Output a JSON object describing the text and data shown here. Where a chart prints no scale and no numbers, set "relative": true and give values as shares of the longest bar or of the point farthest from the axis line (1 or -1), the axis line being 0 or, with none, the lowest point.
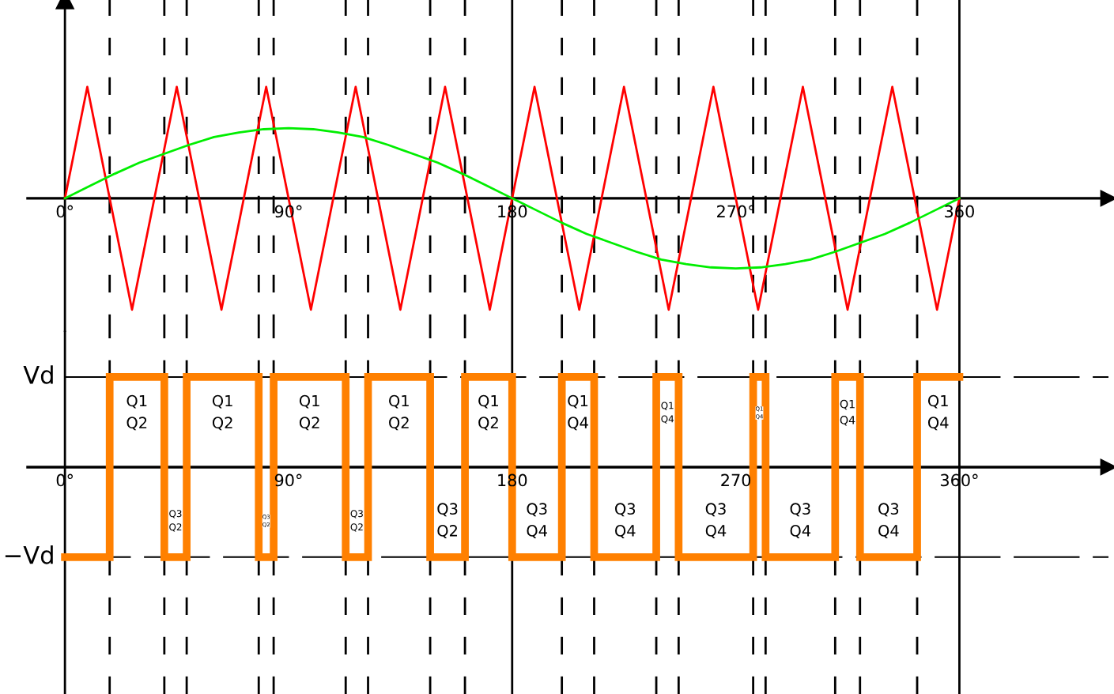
{
  "chart_data": [
    {
      "type": "line",
      "relative": true,
      "series": [
        {
          "color": "#ff0000",
          "x": [
            0,
            9,
            27,
            45,
            63,
            81,
            99,
            117,
            135,
            153,
            171,
            189,
            207,
            225,
            243,
            261,
            279,
            297,
            315,
            333,
            351,
            360
          ],
          "values": [
            0,
            1,
            -1,
            1,
            -1,
            1,
            -1,
            1,
            -1,
            1,
            -1,
            1,
            -1,
            1,
            -1,
            1,
            -1,
            1,
            -1,
            1,
            -1,
            0
          ]
        },
        {
          "color": "#00ee00",
          "x": [
            0,
            10,
            20,
            30,
            40,
            50,
            60,
            70,
            80,
            90,
            100,
            110,
            120,
            130,
            140,
            150,
            160,
            170,
            180,
            190,
            200,
            210,
            220,
            230,
            240,
            250,
            260,
            270,
            280,
            290,
            300,
            310,
            320,
            330,
            340,
            350,
            360
          ],
          "values": [
            0,
            0.11,
            0.22,
            0.32,
            0.4,
            0.48,
            0.55,
            0.59,
            0.62,
            0.63,
            0.62,
            0.59,
            0.55,
            0.48,
            0.4,
            0.32,
            0.22,
            0.11,
            0,
            -0.11,
            -0.22,
            -0.32,
            -0.4,
            -0.48,
            -0.55,
            -0.59,
            -0.62,
            -0.63,
            -0.62,
            -0.59,
            -0.55,
            -0.48,
            -0.4,
            -0.32,
            -0.22,
            -0.11,
            0
          ]
        }
      ],
      "xlim": [
        -15,
        420
      ],
      "xticks": [
        {
          "value": 0,
          "label": "0°"
        },
        {
          "value": 90,
          "label": "90°"
        },
        {
          "value": 180,
          "label": "180"
        },
        {
          "value": 270,
          "label": "270°"
        },
        {
          "value": 360,
          "label": "360"
        }
      ],
      "ref_lines": [
        {
          "axis": "x",
          "value": 18,
          "line_style": "dashed",
          "color": "#000000"
        },
        {
          "axis": "x",
          "value": 40,
          "line_style": "dashed",
          "color": "#000000"
        },
        {
          "axis": "x",
          "value": 49,
          "line_style": "dashed",
          "color": "#000000"
        },
        {
          "axis": "x",
          "value": 78,
          "line_style": "dashed",
          "color": "#000000"
        },
        {
          "axis": "x",
          "value": 84,
          "line_style": "dashed",
          "color": "#000000"
        },
        {
          "axis": "x",
          "value": 113,
          "line_style": "dashed",
          "color": "#000000"
        },
        {
          "axis": "x",
          "value": 122,
          "line_style": "dashed",
          "color": "#000000"
        },
        {
          "axis": "x",
          "value": 147,
          "line_style": "dashed",
          "color": "#000000"
        },
        {
          "axis": "x",
          "value": 161,
          "line_style": "dashed",
          "color": "#000000"
        },
        {
          "axis": "x",
          "value": 180,
          "line_style": "solid",
          "color": "#000000"
        },
        {
          "axis": "x",
          "value": 200,
          "line_style": "dashed",
          "color": "#000000"
        },
        {
          "axis": "x",
          "value": 213,
          "line_style": "dashed",
          "color": "#000000"
        },
        {
          "axis": "x",
          "value": 238,
          "line_style": "dashed",
          "color": "#000000"
        },
        {
          "axis": "x",
          "value": 247,
          "line_style": "dashed",
          "color": "#000000"
        },
        {
          "axis": "x",
          "value": 277,
          "line_style": "dashed",
          "color": "#000000"
        },
        {
          "axis": "x",
          "value": 282,
          "line_style": "dashed",
          "color": "#000000"
        },
        {
          "axis": "x",
          "value": 310,
          "line_style": "dashed",
          "color": "#000000"
        },
        {
          "axis": "x",
          "value": 320,
          "line_style": "dashed",
          "color": "#000000"
        },
        {
          "axis": "x",
          "value": 343,
          "line_style": "dashed",
          "color": "#000000"
        },
        {
          "axis": "x",
          "value": 360,
          "line_style": "solid",
          "color": "#000000"
        }
      ]
    },
    {
      "type": "step",
      "relative": true,
      "series": [
        {
          "color": "#ff8000",
          "x": [
            0,
            18,
            40,
            49,
            78,
            84,
            113,
            122,
            147,
            161,
            180,
            200,
            213,
            238,
            247,
            277,
            282,
            310,
            320,
            343,
            360
          ],
          "values": [
            -1,
            1,
            -1,
            1,
            -1,
            1,
            -1,
            1,
            -1,
            1,
            -1,
            1,
            -1,
            1,
            -1,
            1,
            -1,
            1,
            -1,
            1,
            1
          ]
        }
      ],
      "xlim": [
        -15,
        420
      ],
      "xticks": [
        {
          "value": 0,
          "label": "0°"
        },
        {
          "value": 90,
          "label": "90°"
        },
        {
          "value": 180,
          "label": "180"
        },
        {
          "value": 270,
          "label": "270"
        },
        {
          "value": 360,
          "label": "360°"
        }
      ],
      "annotations": [
        "Q1\nQ2",
        "Q3\nQ2",
        "Q1\nQ2",
        "Q3\nQ2",
        "Q1\nQ2",
        "Q3\nQ2",
        "Q1\nQ2",
        "Q3\nQ2",
        "Q1\nQ2",
        "Q3\nQ4",
        "Q1\nQ4",
        "Q3\nQ4",
        "Q1\nQ4",
        "Q3\nQ4",
        "Q1\nQ4",
        "Q3\nQ4",
        "Q1\nQ4",
        "Q3\nQ4",
        "Q1\nQ4"
      ],
      "ref_lines": [
        {
          "axis": "y",
          "value": 1,
          "label": "Vd",
          "line_style": "dashed",
          "color": "#000000"
        },
        {
          "axis": "y",
          "value": -1,
          "label": "−Vd",
          "line_style": "dashed",
          "color": "#000000"
        },
        {
          "axis": "x",
          "value": 18,
          "line_style": "dashed",
          "color": "#000000"
        },
        {
          "axis": "x",
          "value": 40,
          "line_style": "dashed",
          "color": "#000000"
        },
        {
          "axis": "x",
          "value": 49,
          "line_style": "dashed",
          "color": "#000000"
        },
        {
          "axis": "x",
          "value": 78,
          "line_style": "dashed",
          "color": "#000000"
        },
        {
          "axis": "x",
          "value": 84,
          "line_style": "dashed",
          "color": "#000000"
        },
        {
          "axis": "x",
          "value": 113,
          "line_style": "dashed",
          "color": "#000000"
        },
        {
          "axis": "x",
          "value": 122,
          "line_style": "dashed",
          "color": "#000000"
        },
        {
          "axis": "x",
          "value": 147,
          "line_style": "dashed",
          "color": "#000000"
        },
        {
          "axis": "x",
          "value": 161,
          "line_style": "dashed",
          "color": "#000000"
        },
        {
          "axis": "x",
          "value": 180,
          "line_style": "solid",
          "color": "#000000"
        },
        {
          "axis": "x",
          "value": 200,
          "line_style": "dashed",
          "color": "#000000"
        },
        {
          "axis": "x",
          "value": 213,
          "line_style": "dashed",
          "color": "#000000"
        },
        {
          "axis": "x",
          "value": 238,
          "line_style": "dashed",
          "color": "#000000"
        },
        {
          "axis": "x",
          "value": 247,
          "line_style": "dashed",
          "color": "#000000"
        },
        {
          "axis": "x",
          "value": 277,
          "line_style": "dashed",
          "color": "#000000"
        },
        {
          "axis": "x",
          "value": 282,
          "line_style": "dashed",
          "color": "#000000"
        },
        {
          "axis": "x",
          "value": 310,
          "line_style": "dashed",
          "color": "#000000"
        },
        {
          "axis": "x",
          "value": 320,
          "line_style": "dashed",
          "color": "#000000"
        },
        {
          "axis": "x",
          "value": 343,
          "line_style": "dashed",
          "color": "#000000"
        },
        {
          "axis": "x",
          "value": 360,
          "line_style": "solid",
          "color": "#000000"
        }
      ]
    }
  ]
}
